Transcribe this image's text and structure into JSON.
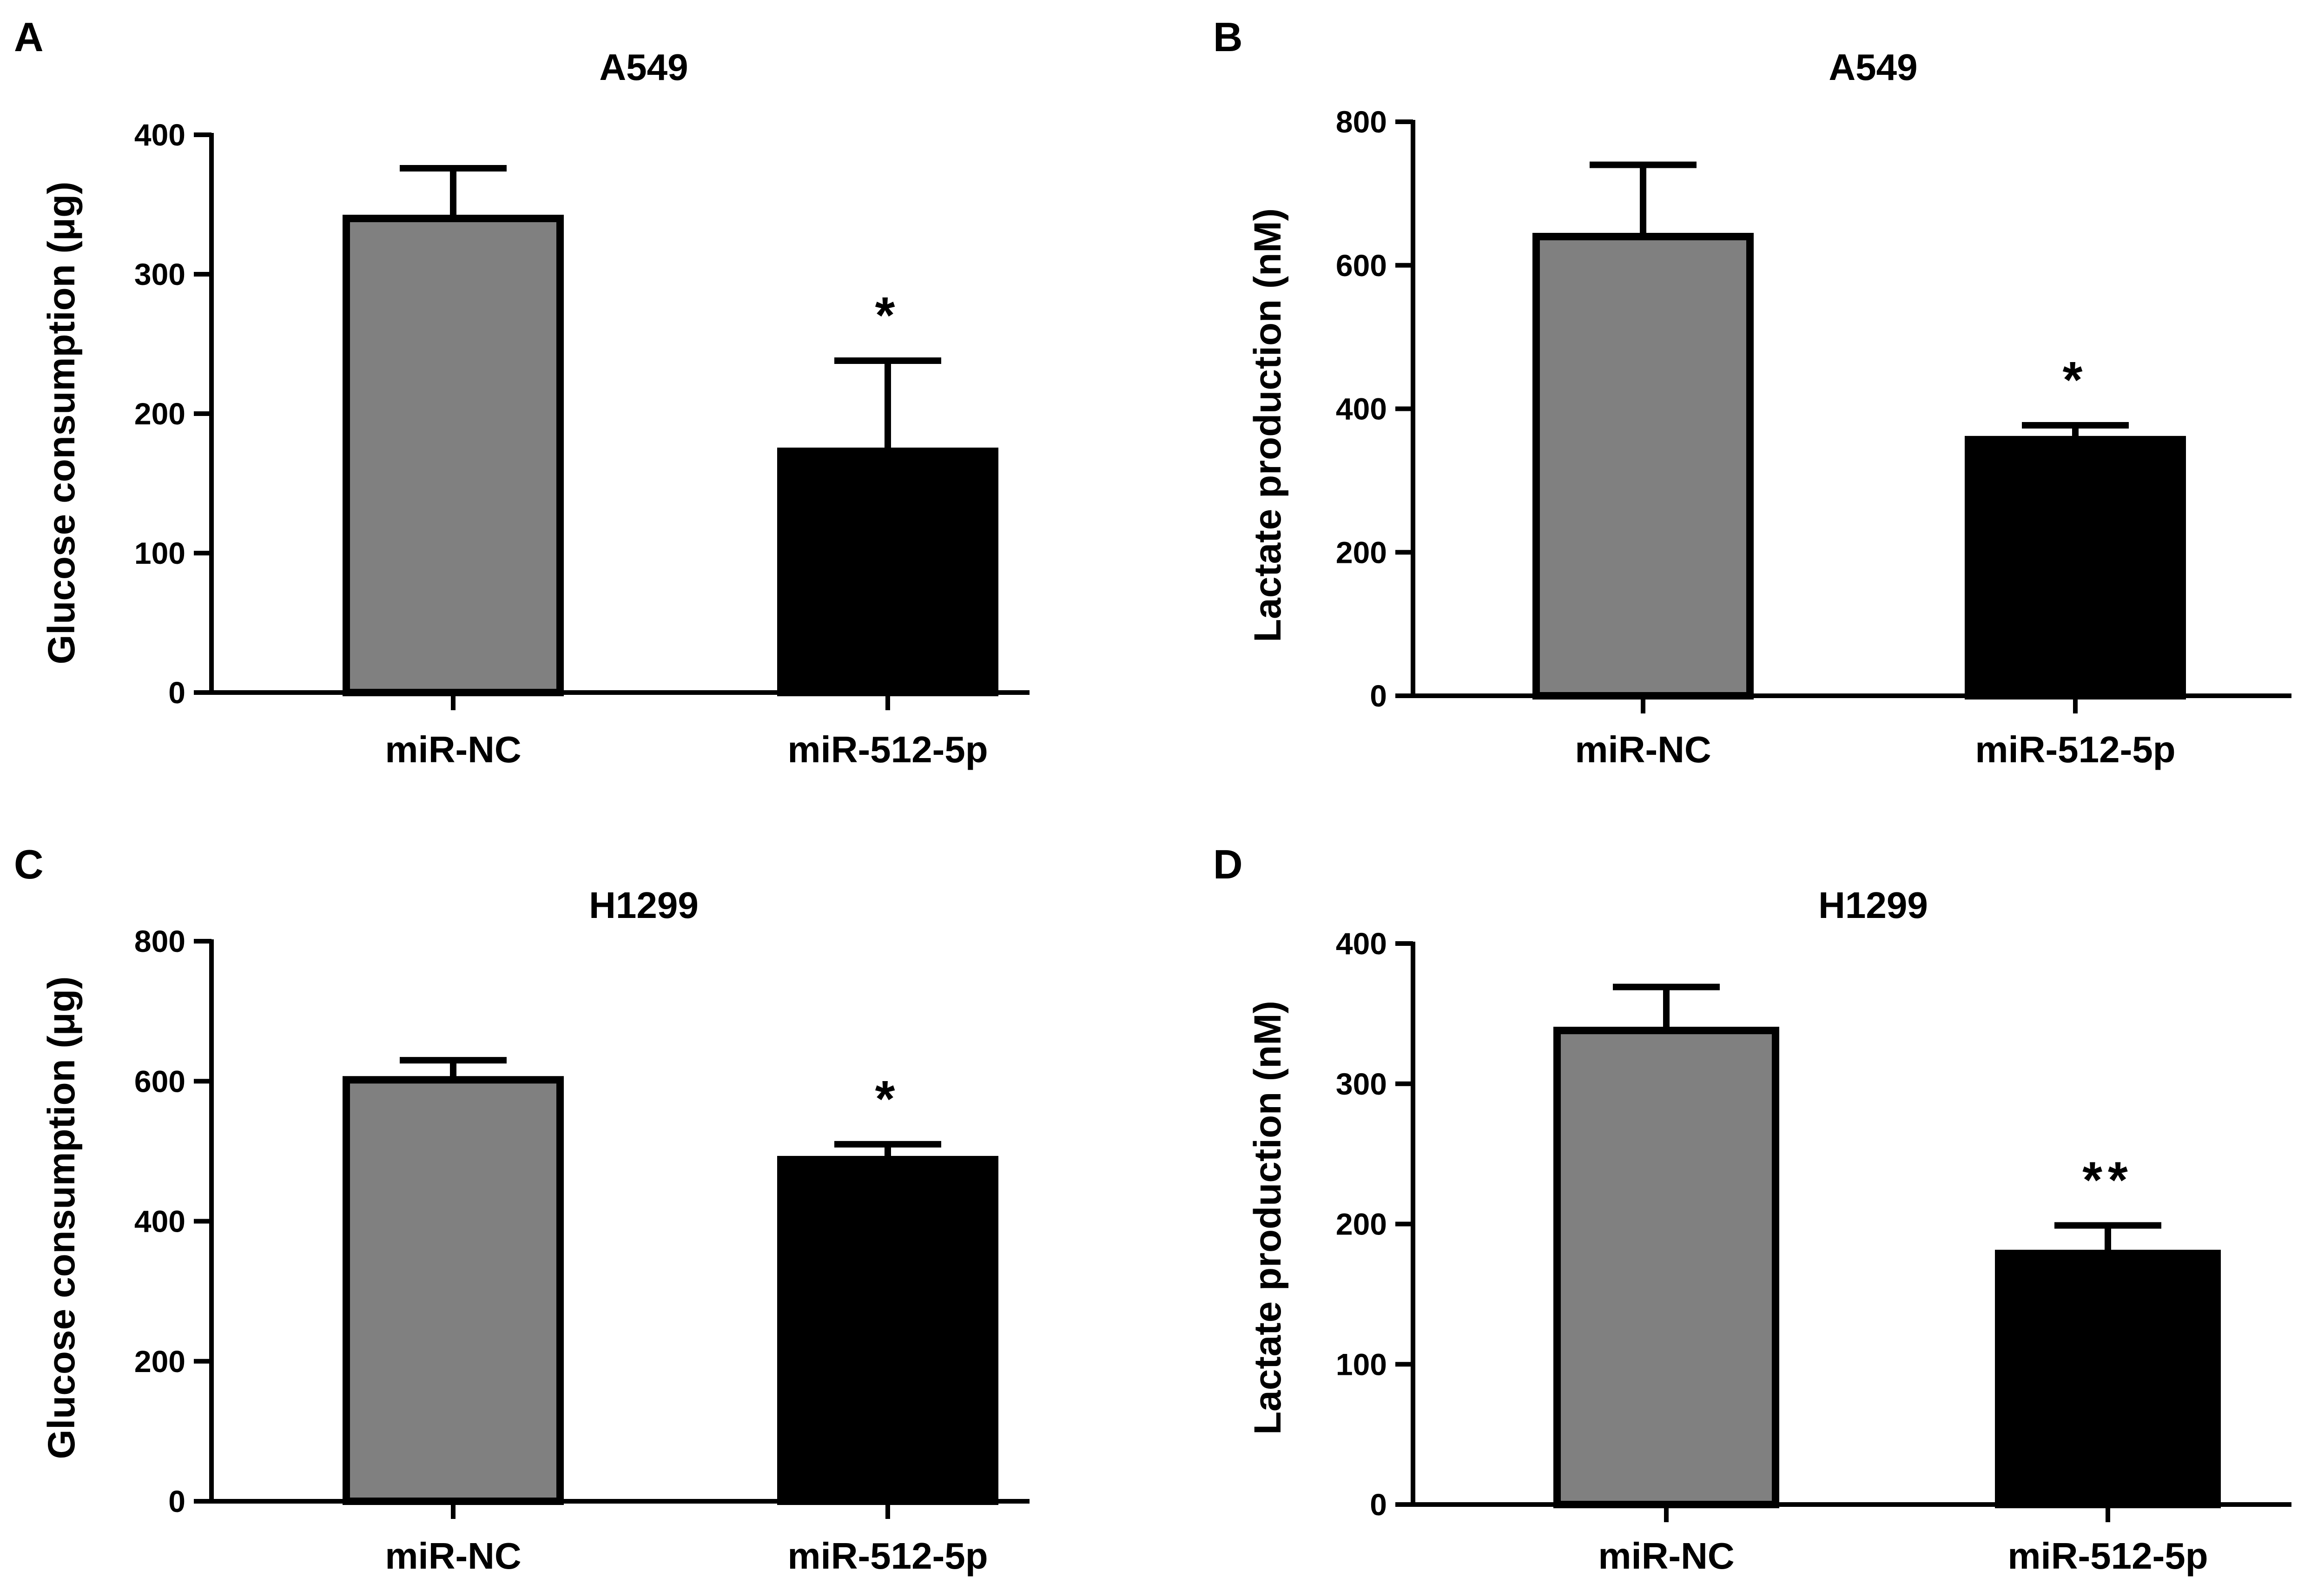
{
  "figure": {
    "colors": {
      "gray_bar": "#808080",
      "black_bar": "#000000",
      "axis": "#000000"
    }
  },
  "chart_data": [
    {
      "id": "A",
      "panel_label": "A",
      "type": "bar",
      "title": "A549",
      "ylabel": "Glucose consumption (μg)",
      "xlabel": "",
      "categories": [
        "miR-NC",
        "miR-512-5p"
      ],
      "values": [
        340,
        173
      ],
      "errors": [
        36,
        65
      ],
      "bar_colors": [
        "#808080",
        "#000000"
      ],
      "annotations": [
        "",
        "*"
      ],
      "ylim": [
        0,
        400
      ],
      "yticks": [
        0,
        100,
        200,
        300,
        400
      ],
      "ytick_labels": [
        "0",
        "100",
        "200",
        "300",
        "400"
      ]
    },
    {
      "id": "B",
      "panel_label": "B",
      "type": "bar",
      "title": "A549",
      "ylabel": "Lactate production (nM)",
      "xlabel": "",
      "categories": [
        "miR-NC",
        "miR-512-5p"
      ],
      "values": [
        640,
        357
      ],
      "errors": [
        100,
        20
      ],
      "bar_colors": [
        "#808080",
        "#000000"
      ],
      "annotations": [
        "",
        "*"
      ],
      "ylim": [
        0,
        800
      ],
      "yticks": [
        0,
        200,
        400,
        600,
        800
      ],
      "ytick_labels": [
        "0",
        "200",
        "400",
        "600",
        "800"
      ]
    },
    {
      "id": "C",
      "panel_label": "C",
      "type": "bar",
      "title": "H1299",
      "ylabel": "Glucose consumption (μg)",
      "xlabel": "",
      "categories": [
        "miR-NC",
        "miR-512-5p"
      ],
      "values": [
        602,
        488
      ],
      "errors": [
        28,
        22
      ],
      "bar_colors": [
        "#808080",
        "#000000"
      ],
      "annotations": [
        "",
        "*"
      ],
      "ylim": [
        0,
        800
      ],
      "yticks": [
        0,
        200,
        400,
        600,
        800
      ],
      "ytick_labels": [
        "0",
        "200",
        "400",
        "600",
        "800"
      ]
    },
    {
      "id": "D",
      "panel_label": "D",
      "type": "bar",
      "title": "H1299",
      "ylabel": "Lactate production (nM)",
      "xlabel": "",
      "categories": [
        "miR-NC",
        "miR-512-5p"
      ],
      "values": [
        338,
        179
      ],
      "errors": [
        31,
        20
      ],
      "bar_colors": [
        "#808080",
        "#000000"
      ],
      "annotations": [
        "",
        "**"
      ],
      "ylim": [
        0,
        400
      ],
      "yticks": [
        0,
        100,
        200,
        300,
        400
      ],
      "ytick_labels": [
        "0",
        "100",
        "200",
        "300",
        "400"
      ]
    }
  ]
}
